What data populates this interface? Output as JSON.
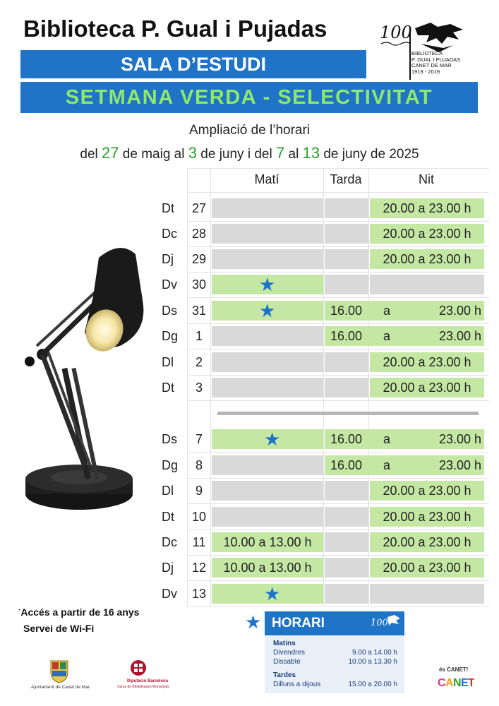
{
  "header": {
    "title": "Biblioteca P. Gual i Pujadas",
    "band1": "SALA D’ESTUDI",
    "band2": "SETMANA VERDA  -  SELECTIVITAT",
    "logo_lines": [
      "BIBLIOTECA",
      "P. GUAL I PUJADAS",
      "CANET DE MAR",
      "1919 - 2019"
    ]
  },
  "subtitle": {
    "line1": "Ampliació de l’horari",
    "line2": {
      "p1": "del ",
      "n1": "27",
      "p2": " de maig al ",
      "n2": "3",
      "p3": " de juny  i  del ",
      "n3": "7",
      "p4": " al ",
      "n4": "13",
      "p5": " de juny de 2025"
    }
  },
  "table": {
    "headers": [
      "Matí",
      "Tarda",
      "Nit"
    ],
    "rows": [
      {
        "day": "Dt",
        "num": "27",
        "mati": "",
        "tarda": "",
        "nit": "20.00 a 23.00 h",
        "star": false,
        "span": false,
        "mati_g": false,
        "tarda_g": false,
        "nit_g": true
      },
      {
        "day": "Dc",
        "num": "28",
        "mati": "",
        "tarda": "",
        "nit": "20.00 a 23.00 h",
        "star": false,
        "span": false,
        "mati_g": false,
        "tarda_g": false,
        "nit_g": true
      },
      {
        "day": "Dj",
        "num": "29",
        "mati": "",
        "tarda": "",
        "nit": "20.00 a 23.00 h",
        "star": false,
        "span": false,
        "mati_g": false,
        "tarda_g": false,
        "nit_g": true
      },
      {
        "day": "Dv",
        "num": "30",
        "mati": "",
        "tarda": "",
        "nit": "",
        "star": true,
        "span": false,
        "mati_g": true,
        "tarda_g": false,
        "nit_g": false
      },
      {
        "day": "Ds",
        "num": "31",
        "mati": "",
        "tarda": "16.00",
        "nit": "23.00 h",
        "star": true,
        "span": true,
        "mati_g": true,
        "tarda_g": true,
        "nit_g": true
      },
      {
        "day": "Dg",
        "num": "1",
        "mati": "",
        "tarda": "16.00",
        "nit": "23.00 h",
        "star": false,
        "span": true,
        "mati_g": false,
        "tarda_g": true,
        "nit_g": true
      },
      {
        "day": "Dl",
        "num": "2",
        "mati": "",
        "tarda": "",
        "nit": "20.00 a 23.00 h",
        "star": false,
        "span": false,
        "mati_g": false,
        "tarda_g": false,
        "nit_g": true
      },
      {
        "day": "Dt",
        "num": "3",
        "mati": "",
        "tarda": "",
        "nit": "20.00 a 23.00 h",
        "star": false,
        "span": false,
        "mati_g": false,
        "tarda_g": false,
        "nit_g": true
      },
      {
        "day": "Ds",
        "num": "7",
        "mati": "",
        "tarda": "16.00",
        "nit": "23.00 h",
        "star": true,
        "span": true,
        "mati_g": true,
        "tarda_g": true,
        "nit_g": true
      },
      {
        "day": "Dg",
        "num": "8",
        "mati": "",
        "tarda": "16.00",
        "nit": "23.00 h",
        "star": false,
        "span": true,
        "mati_g": false,
        "tarda_g": true,
        "nit_g": true
      },
      {
        "day": "Dl",
        "num": "9",
        "mati": "",
        "tarda": "",
        "nit": "20.00 a 23.00 h",
        "star": false,
        "span": false,
        "mati_g": false,
        "tarda_g": false,
        "nit_g": true
      },
      {
        "day": "Dt",
        "num": "10",
        "mati": "",
        "tarda": "",
        "nit": "20.00 a 23.00 h",
        "star": false,
        "span": false,
        "mati_g": false,
        "tarda_g": false,
        "nit_g": true
      },
      {
        "day": "Dc",
        "num": "11",
        "mati": "10.00 a 13.00 h",
        "tarda": "",
        "nit": "20.00 a 23.00 h",
        "star": false,
        "span": false,
        "mati_g": true,
        "tarda_g": false,
        "nit_g": true
      },
      {
        "day": "Dj",
        "num": "12",
        "mati": "10.00 a 13.00 h",
        "tarda": "",
        "nit": "20.00 a 23.00 h",
        "star": false,
        "span": false,
        "mati_g": true,
        "tarda_g": false,
        "nit_g": true
      },
      {
        "day": "Dv",
        "num": "13",
        "mati": "",
        "tarda": "",
        "nit": "",
        "star": true,
        "span": false,
        "mati_g": true,
        "tarda_g": false,
        "nit_g": false
      }
    ],
    "span_word": "a"
  },
  "notes": {
    "line1": "Accés a partir de 16 anys",
    "line2": "Servei de Wi-Fi"
  },
  "horari": {
    "title": "HORARI",
    "matins_label": "Matins",
    "matins": [
      {
        "label": "Divendres",
        "time": "9.00 a 14.00 h"
      },
      {
        "label": "Dissabte",
        "time": "10.00 a 13.30 h"
      }
    ],
    "tardes_label": "Tardes",
    "tardes": [
      {
        "label": "Dilluns a dijous",
        "time": "15.00 a 20.00 h"
      }
    ]
  },
  "footer": {
    "ajuntament": "Ajuntament de Canet de Mar",
    "diputacio": "Diputació Barcelona",
    "diputacio_sub": "Xarxa de Biblioteques Municipals",
    "canet": "és CANET!"
  },
  "colors": {
    "blue": "#1f74c8",
    "green_text": "#8ee86a",
    "green_cell": "#c4e8a4",
    "grey_cell": "#d9d9d9"
  }
}
